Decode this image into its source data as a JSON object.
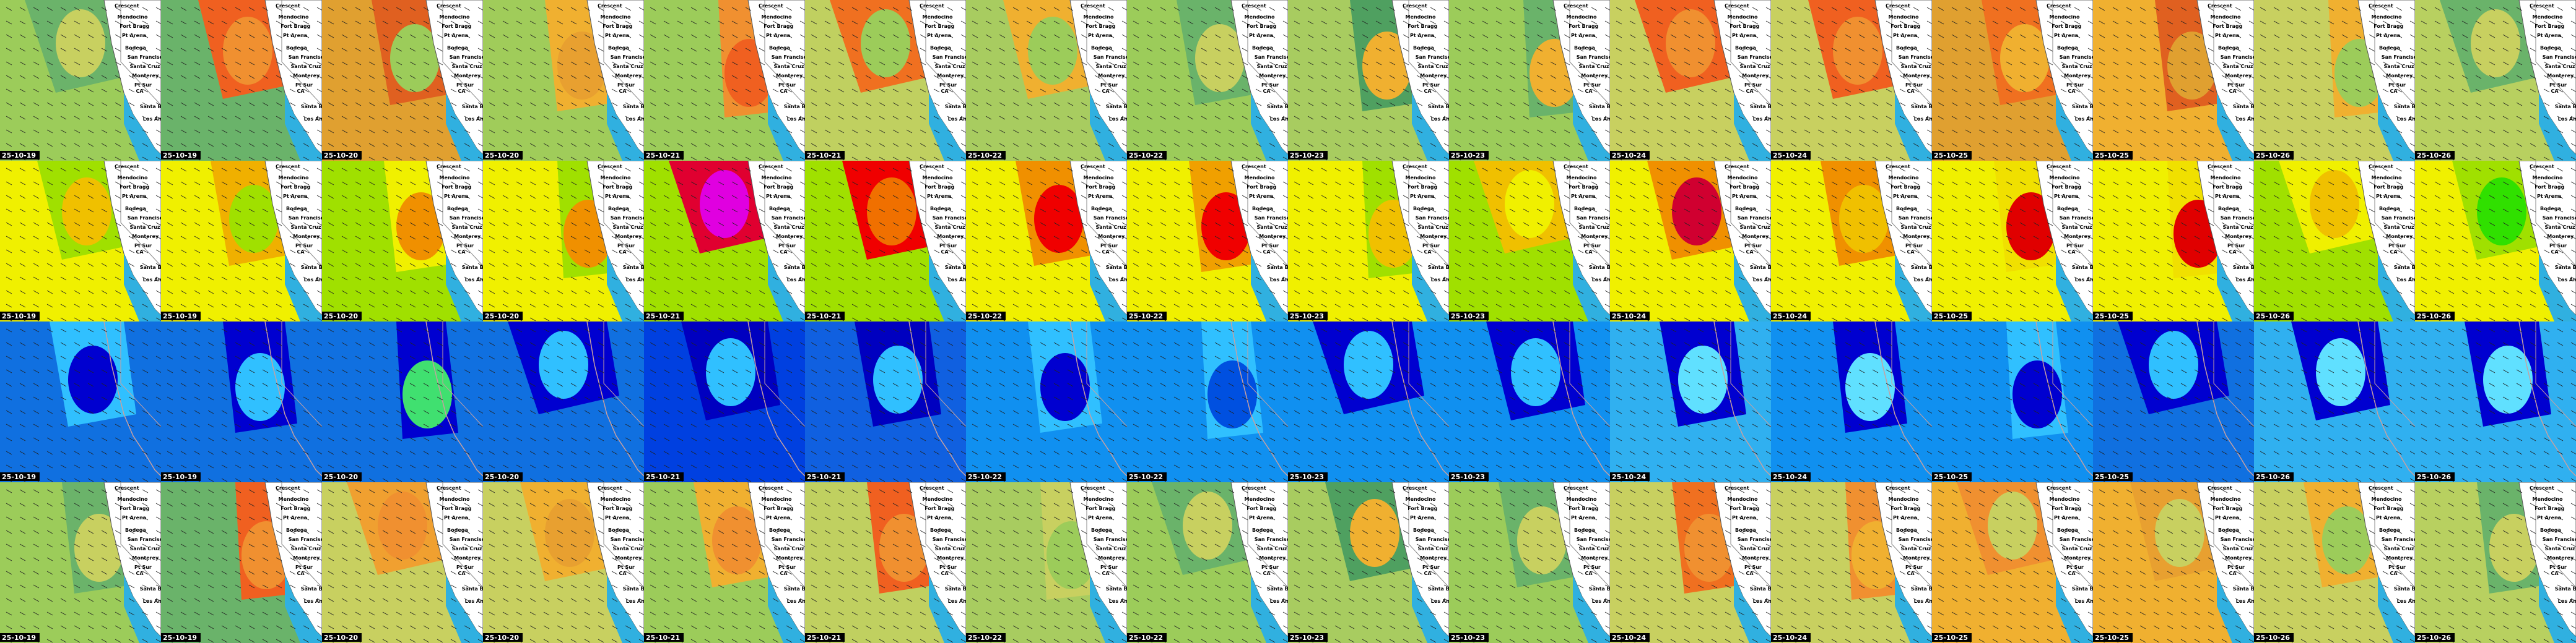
{
  "columns": [
    {
      "date": "25-10-19"
    },
    {
      "date": "25-10-19"
    },
    {
      "date": "25-10-20"
    },
    {
      "date": "25-10-20"
    },
    {
      "date": "25-10-21"
    },
    {
      "date": "25-10-21"
    },
    {
      "date": "25-10-22"
    },
    {
      "date": "25-10-22"
    },
    {
      "date": "25-10-23"
    },
    {
      "date": "25-10-23"
    },
    {
      "date": "25-10-24"
    },
    {
      "date": "25-10-24"
    },
    {
      "date": "25-10-25"
    },
    {
      "date": "25-10-25"
    },
    {
      "date": "25-10-26"
    },
    {
      "date": "25-10-26"
    }
  ],
  "map_labels": [
    "Crescent",
    "Mendocino",
    "Fort Bragg",
    "Pt Arena",
    "Bodega",
    "San Francisco",
    "Santa Cruz",
    "Monterey",
    "Pt Sur",
    "CA",
    "Santa Barbara",
    "Los Angeles"
  ]
}
